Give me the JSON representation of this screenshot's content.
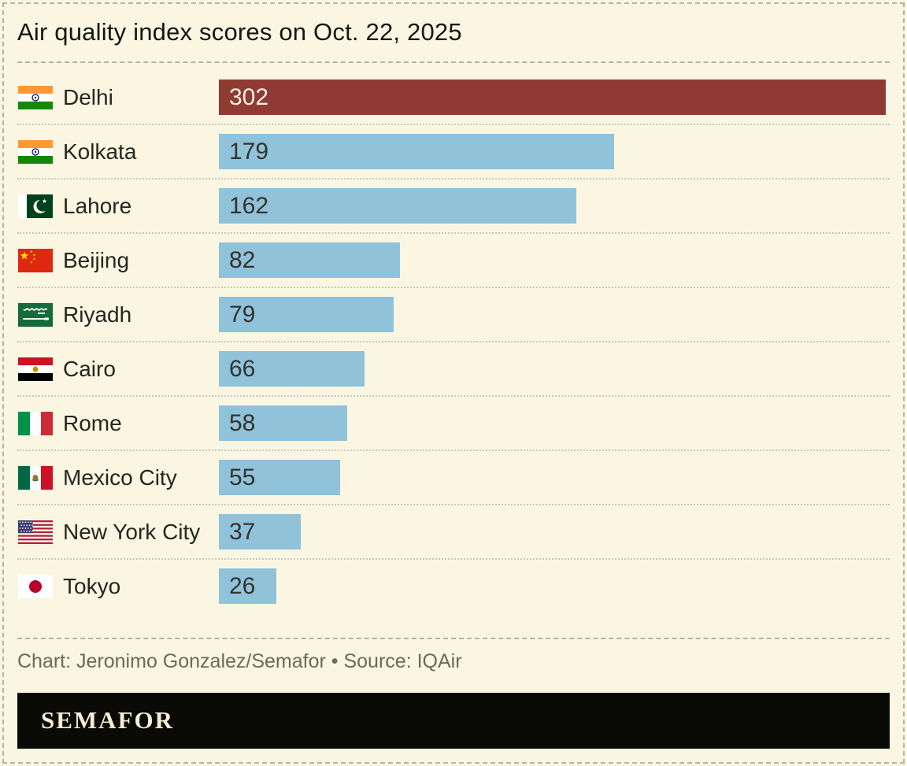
{
  "title": "Air quality index scores on Oct. 22, 2025",
  "footer": {
    "credit": "Chart: Jeronimo Gonzalez/Semafor • Source: IQAir",
    "logo": "SEMAFOR"
  },
  "colors": {
    "background": "#faf6e1",
    "bar_default": "#90c2da",
    "bar_highlight": "#903a34",
    "value_on_default": "#33332c",
    "value_on_highlight": "#f6f2e2",
    "logo_bar_background": "#0a0a07",
    "logo_text": "#f4eed4",
    "credit_text": "#6b6a5c"
  },
  "chart_data": {
    "type": "bar",
    "orientation": "horizontal",
    "title": "Air quality index scores on Oct. 22, 2025",
    "xlabel": "",
    "ylabel": "",
    "xlim": [
      0,
      302
    ],
    "grid": false,
    "legend": false,
    "value_labels": "inside-bar-left",
    "categories": [
      "Delhi",
      "Kolkata",
      "Lahore",
      "Beijing",
      "Riyadh",
      "Cairo",
      "Rome",
      "Mexico City",
      "New York City",
      "Tokyo"
    ],
    "values": [
      302,
      179,
      162,
      82,
      79,
      66,
      58,
      55,
      37,
      26
    ],
    "source": "IQAir",
    "rows": [
      {
        "city": "Delhi",
        "value": 302,
        "flag": "india",
        "flag_icon": "india-flag-icon",
        "highlight": true
      },
      {
        "city": "Kolkata",
        "value": 179,
        "flag": "india",
        "flag_icon": "india-flag-icon",
        "highlight": false
      },
      {
        "city": "Lahore",
        "value": 162,
        "flag": "pakistan",
        "flag_icon": "pakistan-flag-icon",
        "highlight": false
      },
      {
        "city": "Beijing",
        "value": 82,
        "flag": "china",
        "flag_icon": "china-flag-icon",
        "highlight": false
      },
      {
        "city": "Riyadh",
        "value": 79,
        "flag": "saudi-arabia",
        "flag_icon": "saudi-arabia-flag-icon",
        "highlight": false
      },
      {
        "city": "Cairo",
        "value": 66,
        "flag": "egypt",
        "flag_icon": "egypt-flag-icon",
        "highlight": false
      },
      {
        "city": "Rome",
        "value": 58,
        "flag": "italy",
        "flag_icon": "italy-flag-icon",
        "highlight": false
      },
      {
        "city": "Mexico City",
        "value": 55,
        "flag": "mexico",
        "flag_icon": "mexico-flag-icon",
        "highlight": false
      },
      {
        "city": "New York City",
        "value": 37,
        "flag": "usa",
        "flag_icon": "usa-flag-icon",
        "highlight": false
      },
      {
        "city": "Tokyo",
        "value": 26,
        "flag": "japan",
        "flag_icon": "japan-flag-icon",
        "highlight": false
      }
    ]
  }
}
